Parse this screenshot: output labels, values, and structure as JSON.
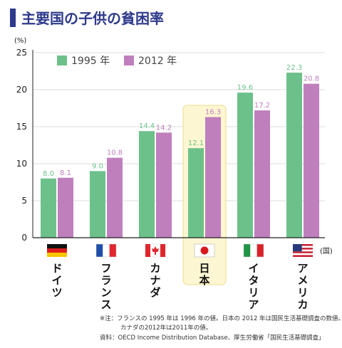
{
  "title": "主要国の子供の貧困率",
  "chart_data": {
    "type": "bar",
    "title": "主要国の子供の貧困率",
    "ylabel": "(%)",
    "xlabel": "(国)",
    "ylim": [
      0,
      25
    ],
    "yticks": [
      0,
      5,
      10,
      15,
      20,
      25
    ],
    "grid": true,
    "legend_position": "top-left",
    "categories": [
      "ドイツ",
      "フランス",
      "カナダ",
      "日本",
      "イタリア",
      "アメリカ"
    ],
    "flags": [
      "germany-flag",
      "france-flag",
      "canada-flag",
      "japan-flag",
      "italy-flag",
      "usa-flag"
    ],
    "highlight_category": "日本",
    "series": [
      {
        "name": "1995 年",
        "color": "#6cc18a",
        "values": [
          8.0,
          9.0,
          14.4,
          12.1,
          19.6,
          22.3
        ],
        "labels": [
          "8.0",
          "9.0",
          "14.4",
          "12.1",
          "19.6",
          "22.3"
        ]
      },
      {
        "name": "2012 年",
        "color": "#bf7fbd",
        "values": [
          8.1,
          10.8,
          14.2,
          16.3,
          17.2,
          20.8
        ],
        "labels": [
          "8.1",
          "10.8",
          "14.2",
          "16.3",
          "17.2",
          "20.8"
        ]
      }
    ]
  },
  "notes": {
    "note1": "※注：フランスの 1995 年は 1996 年の値。日本の 2012 年は国民生活基礎調査の数値。",
    "note2": "カナダの2012年は2011年の値。",
    "source": "資料：OECD Income Distribution Database、厚生労働省「国民生活基礎調査」"
  }
}
